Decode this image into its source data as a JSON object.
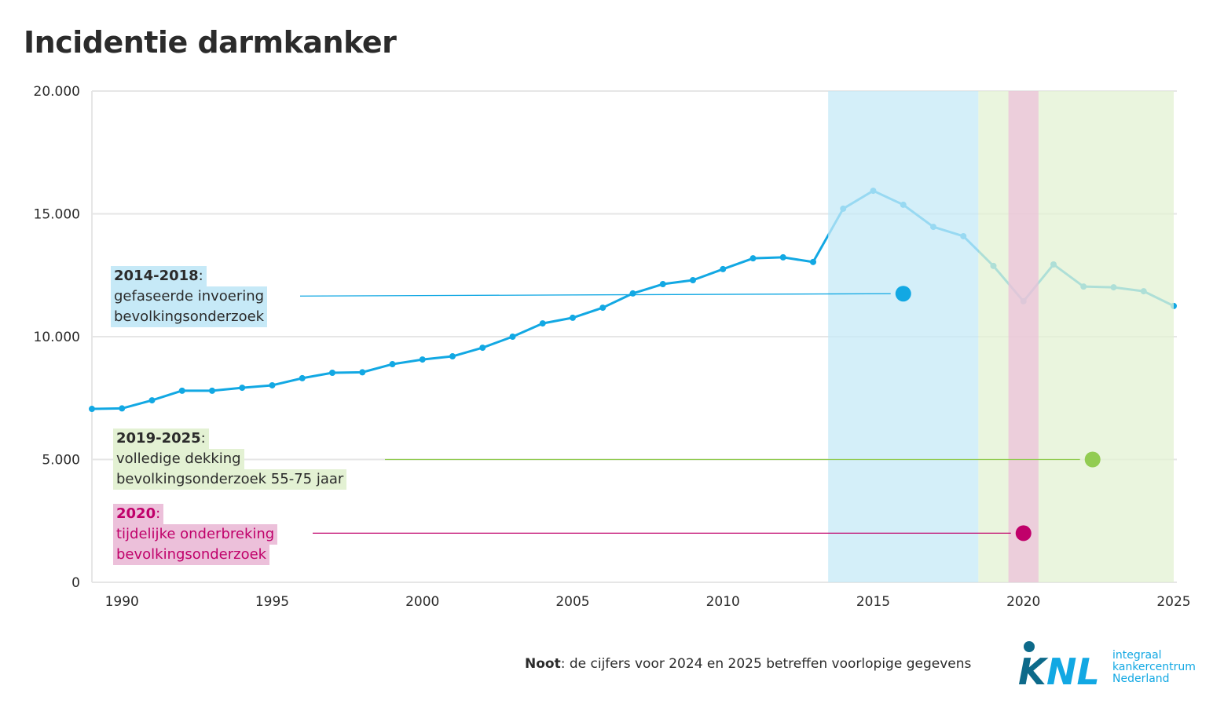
{
  "chart_data": {
    "type": "line",
    "title": "Incidentie darmkanker",
    "xlabel": "",
    "ylabel": "",
    "xlim": [
      1989,
      2025
    ],
    "ylim": [
      0,
      20000
    ],
    "x_ticks": [
      "1990",
      "1995",
      "2000",
      "2005",
      "2010",
      "2015",
      "2020",
      "2025"
    ],
    "y_ticks": [
      "0",
      "5.000",
      "10.000",
      "15.000",
      "20.000"
    ],
    "grid": "horizontal",
    "x": [
      1989,
      1990,
      1991,
      1992,
      1993,
      1994,
      1995,
      1996,
      1997,
      1998,
      1999,
      2000,
      2001,
      2002,
      2003,
      2004,
      2005,
      2006,
      2007,
      2008,
      2009,
      2010,
      2011,
      2012,
      2013,
      2014,
      2015,
      2016,
      2017,
      2018,
      2019,
      2020,
      2021,
      2022,
      2023,
      2024,
      2025
    ],
    "values": [
      7060,
      7080,
      7410,
      7800,
      7800,
      7920,
      8020,
      8310,
      8530,
      8550,
      8880,
      9070,
      9200,
      9550,
      10000,
      10540,
      10770,
      11180,
      11760,
      12140,
      12300,
      12750,
      13190,
      13230,
      13040,
      15210,
      15940,
      15370,
      14470,
      14090,
      12880,
      11440,
      12940,
      12040,
      12010,
      11850,
      11250
    ],
    "line_color": "#12a8e3",
    "bands": [
      {
        "from": 2013.5,
        "to": 2018.5,
        "color": "#c6e9f7",
        "period": "2014-2018",
        "text": [
          "gefaseerde invoering",
          "bevolkingsonderzoek"
        ],
        "marker_color": "#12a8e3",
        "marker_x": 2016,
        "marker_y": 11750
      },
      {
        "from": 2018.5,
        "to": 2025,
        "color": "#e3f1d3",
        "period": "2019-2025",
        "text": [
          "volledige dekking",
          "bevolkingsonderzoek 55-75 jaar"
        ],
        "marker_color": "#92cc52",
        "marker_x": 2022.3,
        "marker_y": 5000
      },
      {
        "from": 2019.5,
        "to": 2020.5,
        "color": "#ecc0da",
        "period": "2020",
        "text": [
          "tijdelijke onderbreking",
          "bevolkingsonderzoek"
        ],
        "marker_color": "#c0006a",
        "marker_x": 2020,
        "marker_y": 2000
      }
    ]
  },
  "note": {
    "bold": "Noot",
    "text": ": de cijfers voor 2024 en 2025 betreffen voorlopige gegevens"
  },
  "logo": {
    "mark": "iKNL",
    "lines": [
      "integraal",
      "kankercentrum",
      "Nederland"
    ]
  }
}
